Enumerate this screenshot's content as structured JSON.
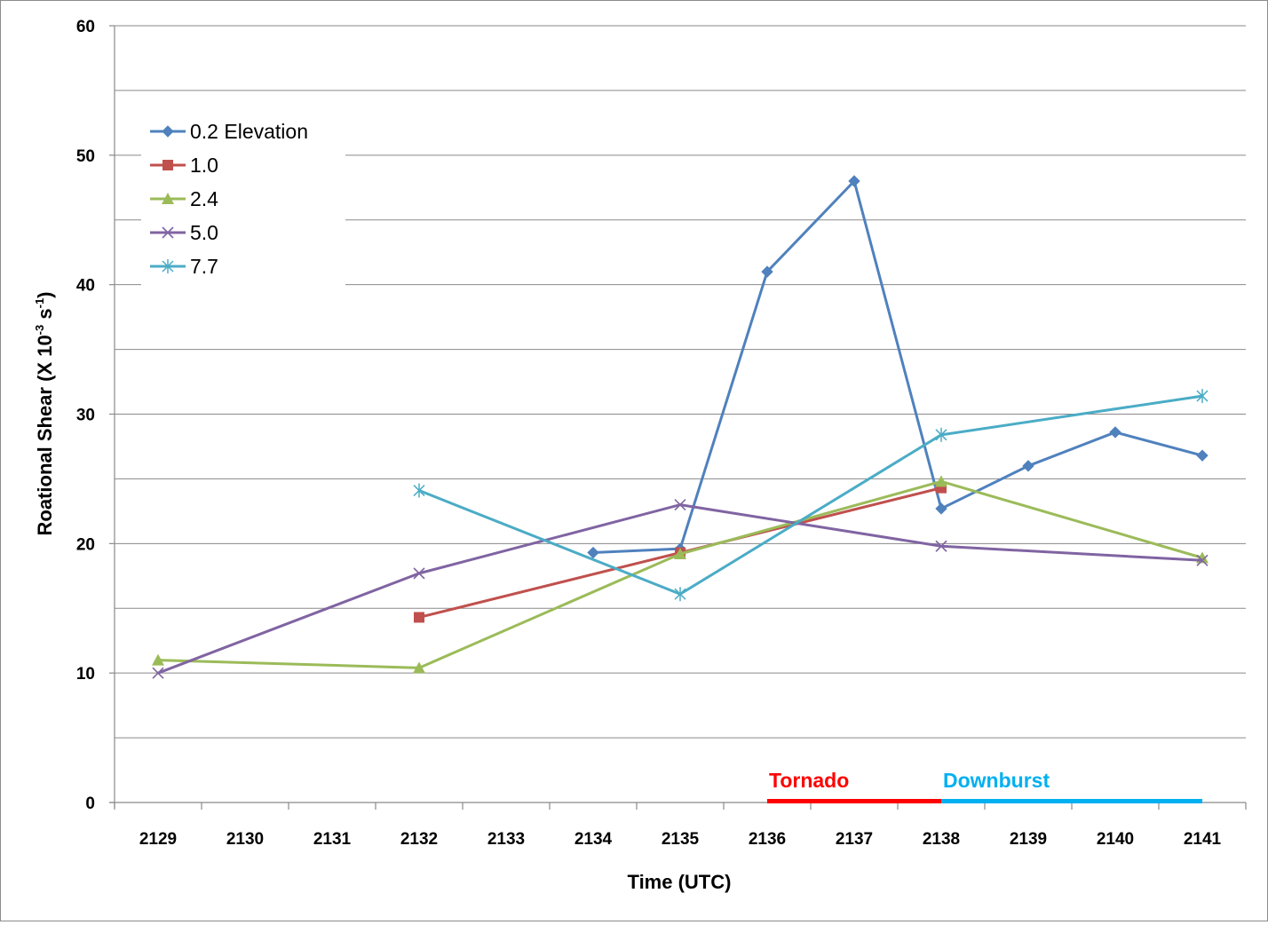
{
  "chart_data": {
    "type": "line",
    "categories": [
      "2129",
      "2130",
      "2131",
      "2132",
      "2133",
      "2134",
      "2135",
      "2136",
      "2137",
      "2138",
      "2139",
      "2140",
      "2141"
    ],
    "xlabel": "Time (UTC)",
    "ylabel_parts": {
      "main": "Roational Shear (X 10",
      "sup1": "-3",
      "mid": " s",
      "sup2": "-1",
      "end": ")"
    },
    "ylim": [
      0,
      60
    ],
    "yticks": [
      0,
      10,
      20,
      30,
      40,
      50,
      60
    ],
    "grid": {
      "major_step": 10,
      "minor_step": 5
    },
    "legend_position": "top-left",
    "series": [
      {
        "name": "0.2 Elevation",
        "color": "#4f81bd",
        "marker": "diamond",
        "x": [
          5,
          6,
          7,
          8,
          9,
          10,
          11,
          12
        ],
        "y": [
          19.3,
          19.6,
          41.0,
          48.0,
          22.7,
          26.0,
          28.6,
          26.8
        ]
      },
      {
        "name": "1.0",
        "color": "#c0504d",
        "marker": "square",
        "x": [
          3,
          6,
          9
        ],
        "y": [
          14.3,
          19.3,
          24.3
        ]
      },
      {
        "name": "2.4",
        "color": "#9bbb59",
        "marker": "triangle",
        "x": [
          0,
          3,
          6,
          9,
          12
        ],
        "y": [
          11.0,
          10.4,
          19.2,
          24.8,
          18.9
        ]
      },
      {
        "name": "5.0",
        "color": "#8064a2",
        "marker": "x",
        "x": [
          0,
          3,
          6,
          9,
          12
        ],
        "y": [
          10.0,
          17.7,
          23.0,
          19.8,
          18.7
        ]
      },
      {
        "name": "7.7",
        "color": "#4bacc6",
        "marker": "star",
        "x": [
          3,
          6,
          9,
          12
        ],
        "y": [
          24.1,
          16.1,
          28.4,
          31.4
        ]
      }
    ],
    "annotations": [
      {
        "text": "Tornado",
        "color": "#ff0000",
        "from": 7.5,
        "to": 9.5
      },
      {
        "text": "Downburst",
        "color": "#00b0f0",
        "from": 9.5,
        "to": 12.5
      }
    ]
  }
}
